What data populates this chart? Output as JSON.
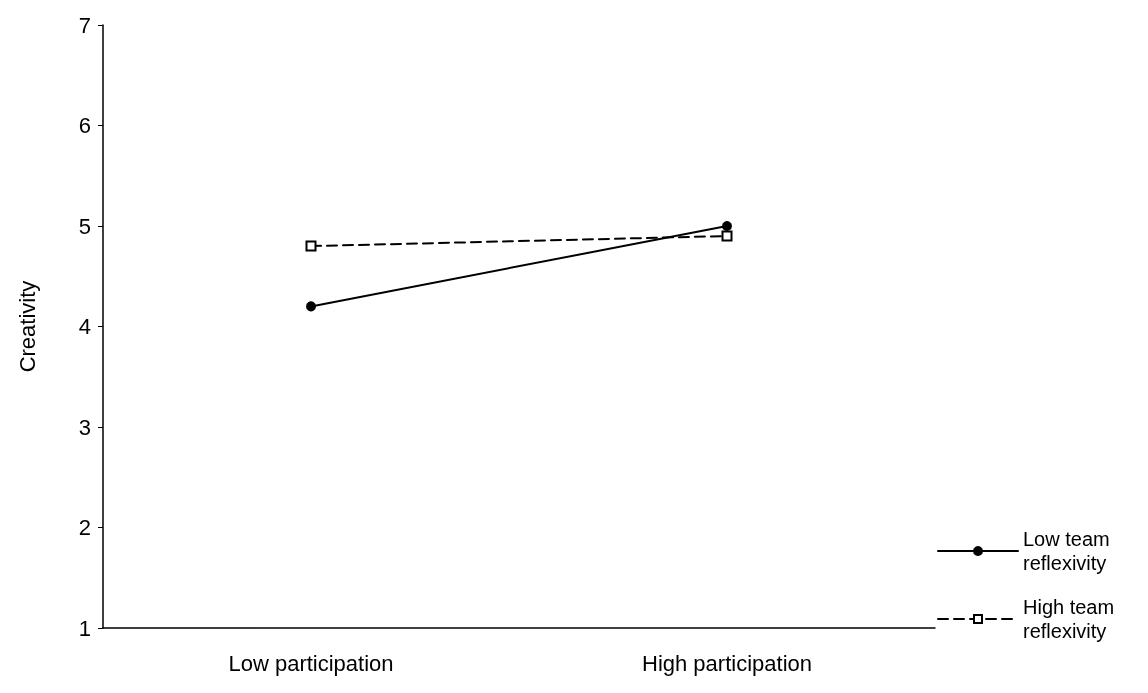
{
  "chart_data": {
    "type": "line",
    "ylabel": "Creativity",
    "categories": [
      "Low participation",
      "High participation"
    ],
    "series": [
      {
        "name": "Low team reflexivity",
        "color": "#000000",
        "values": [
          4.2,
          5.0
        ],
        "marker": "circle",
        "line_style": "solid"
      },
      {
        "name": "High team reflexivity",
        "color": "#000000",
        "values": [
          4.8,
          4.9
        ],
        "marker": "square",
        "line_style": "dashed"
      }
    ],
    "ylim": [
      1,
      7
    ],
    "yticks": [
      1,
      2,
      3,
      4,
      5,
      6,
      7
    ],
    "grid": false,
    "legend": "right"
  }
}
